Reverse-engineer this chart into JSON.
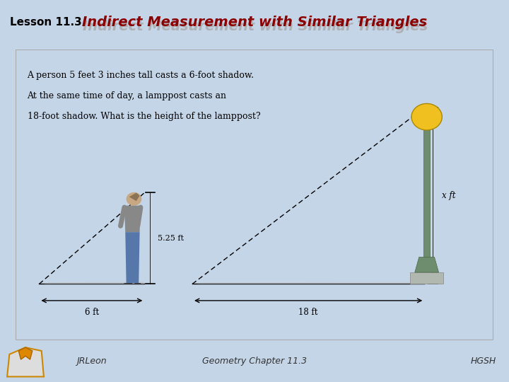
{
  "title": "Indirect Measurement with Similar Triangles",
  "lesson_label": "Lesson 11.3",
  "footer_left": "JRLeon",
  "footer_center": "Geometry Chapter 11.3",
  "footer_right": "HGSH",
  "header_bg": "#b8cce4",
  "slide_bg": "#c5d5e8",
  "content_bg": "#ffffff",
  "title_color": "#8B0000",
  "title_shadow_color": "#aaaaaa",
  "lesson_color": "#000000",
  "problem_text_line1": "A person 5 feet 3 inches tall casts a 6-foot shadow.",
  "problem_text_line2": "At the same time of day, a lamppost casts an",
  "problem_text_line3": "18-foot shadow. What is the height of the lamppost?",
  "person_height_label": "5.25 ft",
  "shadow1_label": "6 ft",
  "shadow2_label": "18 ft",
  "x_label": "x ft",
  "footer_bg": "#c5d5e8",
  "person_gray": "#888888",
  "person_blue": "#5577aa",
  "person_skin": "#c8a882",
  "lamp_green": "#6e8c6e",
  "lamp_globe": "#f0c020",
  "shadow_color": "#bbbbbb"
}
